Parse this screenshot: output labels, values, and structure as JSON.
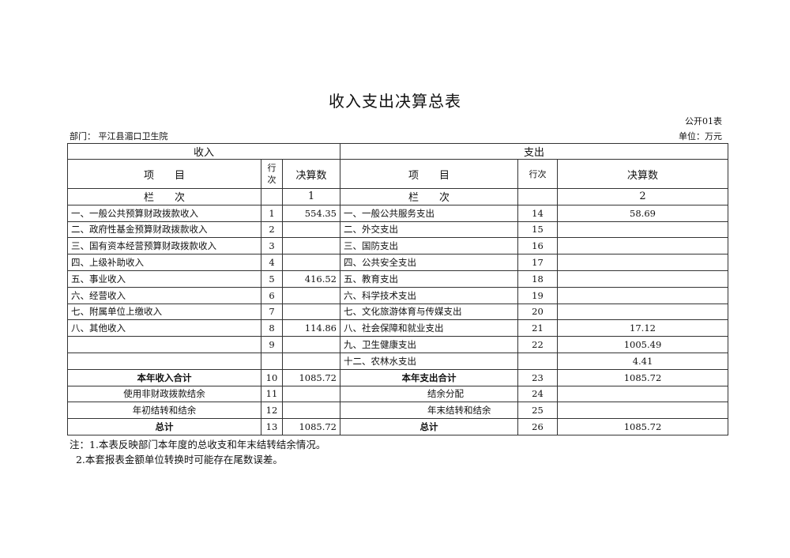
{
  "title": "收入支出决算总表",
  "form_no": "公开01表",
  "department": "部门：  平江县湄口卫生院",
  "unit": "单位：万元",
  "header": {
    "income": "收入",
    "expense": "支出",
    "item": "项　　目",
    "row_no_income": "行\n次",
    "row_no_expense": "行次",
    "amount": "决算数",
    "lanci": "栏　　次",
    "col1": "1",
    "col2": "2"
  },
  "rows": [
    {
      "in_item": "一、一般公共预算财政拨款收入",
      "in_no": "1",
      "in_amt": "554.35",
      "ex_item": "一、一般公共服务支出",
      "ex_no": "14",
      "ex_amt": "58.69"
    },
    {
      "in_item": "二、政府性基金预算财政拨款收入",
      "in_no": "2",
      "in_amt": "",
      "ex_item": "二、外交支出",
      "ex_no": "15",
      "ex_amt": ""
    },
    {
      "in_item": "三、国有资本经营预算财政拨款收入",
      "in_no": "3",
      "in_amt": "",
      "ex_item": "三、国防支出",
      "ex_no": "16",
      "ex_amt": ""
    },
    {
      "in_item": "四、上级补助收入",
      "in_no": "4",
      "in_amt": "",
      "ex_item": "四、公共安全支出",
      "ex_no": "17",
      "ex_amt": ""
    },
    {
      "in_item": "五、事业收入",
      "in_no": "5",
      "in_amt": "416.52",
      "ex_item": "五、教育支出",
      "ex_no": "18",
      "ex_amt": ""
    },
    {
      "in_item": "六、经营收入",
      "in_no": "6",
      "in_amt": "",
      "ex_item": "六、科学技术支出",
      "ex_no": "19",
      "ex_amt": ""
    },
    {
      "in_item": "七、附属单位上缴收入",
      "in_no": "7",
      "in_amt": "",
      "ex_item": "七、文化旅游体育与传媒支出",
      "ex_no": "20",
      "ex_amt": ""
    },
    {
      "in_item": "八、其他收入",
      "in_no": "8",
      "in_amt": "114.86",
      "ex_item": "八、社会保障和就业支出",
      "ex_no": "21",
      "ex_amt": "17.12"
    },
    {
      "in_item": "",
      "in_no": "9",
      "in_amt": "",
      "ex_item": "九、卫生健康支出",
      "ex_no": "22",
      "ex_amt": "1005.49"
    },
    {
      "in_item": "",
      "in_no": "",
      "in_amt": "",
      "ex_item": "十二、农林水支出",
      "ex_no": "",
      "ex_amt": "4.41"
    }
  ],
  "totals": [
    {
      "in_item": "本年收入合计",
      "in_no": "10",
      "in_amt": "1085.72",
      "ex_item": "本年支出合计",
      "ex_no": "23",
      "ex_amt": "1085.72",
      "bold": true
    },
    {
      "in_item": "使用非财政拨款结余",
      "in_no": "11",
      "in_amt": "",
      "ex_item": "结余分配",
      "ex_no": "24",
      "ex_amt": ""
    },
    {
      "in_item": "年初结转和结余",
      "in_no": "12",
      "in_amt": "",
      "ex_item": "年末结转和结余",
      "ex_no": "25",
      "ex_amt": ""
    },
    {
      "in_item": "总计",
      "in_no": "13",
      "in_amt": "1085.72",
      "ex_item": "总计",
      "ex_no": "26",
      "ex_amt": "1085.72",
      "bold": true
    }
  ],
  "notes": [
    "注：1.本表反映部门本年度的总收支和年末结转结余情况。",
    "  2.本套报表金额单位转换时可能存在尾数误差。"
  ]
}
